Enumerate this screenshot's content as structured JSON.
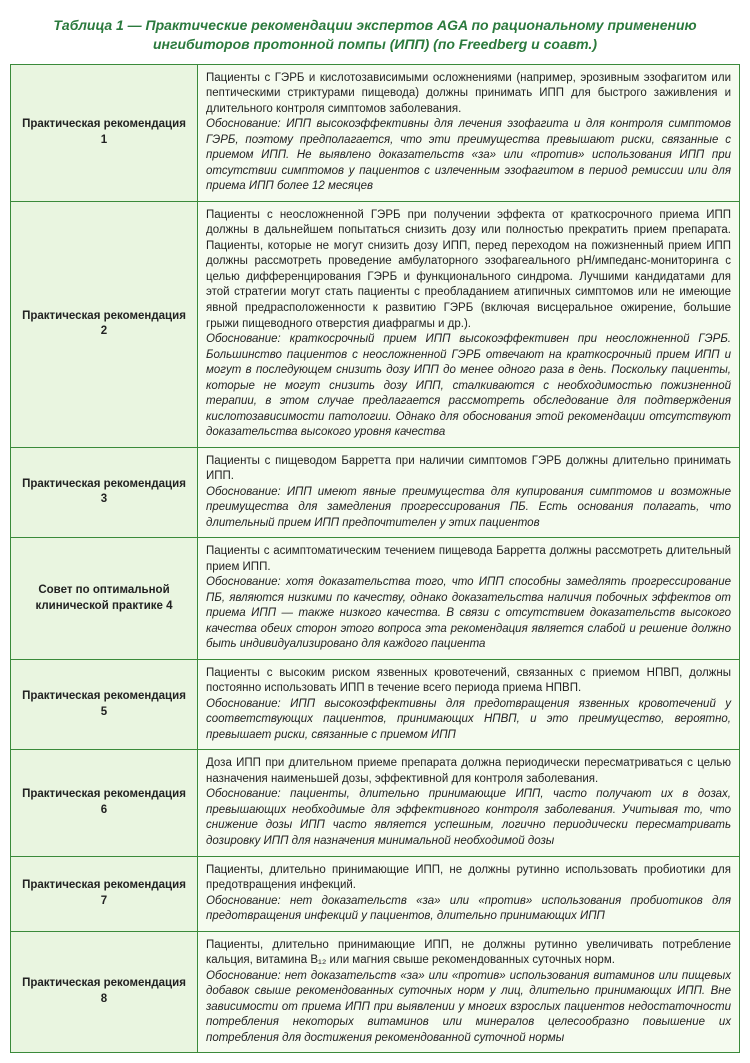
{
  "title": "Таблица 1 — Практические рекомендации экспертов AGA по рациональному применению ингибиторов протонной помпы (ИПП) (по Freedberg и соавт.)",
  "colors": {
    "title_color": "#2b7a3d",
    "border_color": "#3a8a3a",
    "label_bg": "#e9f5e0",
    "content_bg": "#f5fbef",
    "text_color": "#222222"
  },
  "rows": [
    {
      "label": "Практическая рекомендация 1",
      "main": "Пациенты с ГЭРБ и кислотозависимыми осложнениями (например, эрозивным эзофагитом или пептическими стриктурами пищевода) должны принимать ИПП для быстрого заживления и длительного контроля симптомов заболевания.",
      "rationale": "Обоснование: ИПП высокоэффективны для лечения эзофагита и для контроля симптомов ГЭРБ, поэтому предполагается, что эти преимущества превышают риски, связанные с приемом ИПП. Не выявлено доказательств «за» или «против» использования ИПП при отсутствии симптомов у пациентов с излеченным эзофагитом в период ремиссии или для приема ИПП более 12 месяцев"
    },
    {
      "label": "Практическая рекомендация 2",
      "main": "Пациенты с неосложненной ГЭРБ при получении эффекта от краткосрочного приема ИПП должны в дальнейшем попытаться снизить дозу или полностью прекратить прием препарата. Пациенты, которые не могут снизить дозу ИПП, перед переходом на пожизненный прием ИПП должны рассмотреть проведение амбулаторного эзофагеального pH/импеданс-мониторинга с целью дифференцирования ГЭРБ и функционального синдрома. Лучшими кандидатами для этой стратегии могут стать пациенты с преобладанием атипичных симптомов или не имеющие явной предрасположенности к развитию ГЭРБ (включая висцеральное ожирение, большие грыжи пищеводного отверстия диафрагмы и др.).",
      "rationale": "Обоснование: краткосрочный прием ИПП высокоэффективен при неосложненной ГЭРБ. Большинство пациентов с неосложненной ГЭРБ отвечают на краткосрочный прием ИПП и могут в последующем снизить дозу ИПП до менее одного раза в день. Поскольку пациенты, которые не могут снизить дозу ИПП, сталкиваются с необходимостью пожизненной терапии, в этом случае предлагается рассмотреть обследование для подтверждения кислотозависимости патологии. Однако для обоснования этой рекомендации отсутствуют доказательства высокого уровня качества"
    },
    {
      "label": "Практическая рекомендация 3",
      "main": "Пациенты с пищеводом Барретта при наличии симптомов ГЭРБ должны длительно принимать ИПП.",
      "rationale": "Обоснование: ИПП имеют явные преимущества для купирования симптомов и возможные преимущества для замедления прогрессирования ПБ. Есть основания полагать, что длительный прием ИПП предпочтителен у этих пациентов"
    },
    {
      "label": "Совет по оптимальной клинической практике 4",
      "main": "Пациенты с асимптоматическим течением пищевода Барретта должны рассмотреть длительный прием ИПП.",
      "rationale": "Обоснование: хотя доказательства того, что ИПП способны замедлять прогрессирование ПБ, являются низкими по качеству, однако доказательства наличия побочных эффектов от приема ИПП — также низкого качества. В связи с отсутствием доказательств высокого качества обеих сторон этого вопроса эта рекомендация является слабой и решение должно быть индивидуализировано для каждого пациента"
    },
    {
      "label": "Практическая рекомендация 5",
      "main": "Пациенты с высоким риском язвенных кровотечений, связанных с приемом НПВП, должны постоянно использовать ИПП в течение всего периода приема НПВП.",
      "rationale": "Обоснование: ИПП высокоэффективны для предотвращения язвенных кровотечений у соответствующих пациентов, принимающих НПВП, и это преимущество, вероятно, превышает риски, связанные с приемом ИПП"
    },
    {
      "label": "Практическая рекомендация 6",
      "main": "Доза ИПП при длительном приеме препарата должна периодически пересматриваться с целью назначения наименьшей дозы, эффективной для контроля заболевания.",
      "rationale": "Обоснование: пациенты, длительно принимающие ИПП, часто получают их в дозах, превышающих необходимые для эффективного контроля заболевания. Учитывая то, что снижение дозы ИПП часто является успешным, логично периодически пересматривать дозировку ИПП для назначения минимальной необходимой дозы"
    },
    {
      "label": "Практическая рекомендация 7",
      "main": "Пациенты, длительно принимающие ИПП, не должны рутинно использовать пробиотики для предотвращения инфекций.",
      "rationale": "Обоснование: нет доказательств «за» или «против» использования пробиотиков для предотвращения инфекций у пациентов, длительно принимающих ИПП"
    },
    {
      "label": "Практическая рекомендация 8",
      "main": "Пациенты, длительно принимающие ИПП, не должны рутинно увеличивать потребление кальция, витамина B₁₂ или магния свыше рекомендованных суточных норм.",
      "rationale": "Обоснование: нет доказательств «за» или «против» использования витаминов или пищевых добавок свыше рекомендованных суточных норм у лиц, длительно принимающих ИПП. Вне зависимости от приема ИПП при выявлении у многих взрослых пациентов недостаточности потребления некоторых витаминов или минералов целесообразно повышение их потребления для достижения рекомендованной суточной нормы"
    }
  ]
}
